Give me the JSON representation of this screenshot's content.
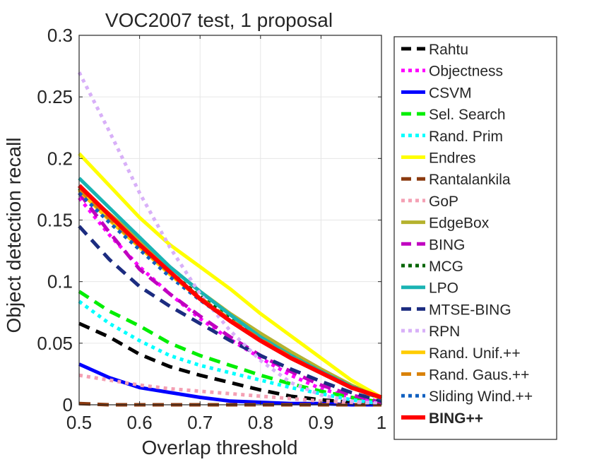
{
  "chart_data": {
    "type": "line",
    "title": "VOC2007 test, 1 proposal",
    "xlabel": "Overlap threshold",
    "ylabel": "Object detection recall",
    "xlim": [
      0.5,
      1
    ],
    "ylim": [
      0,
      0.3
    ],
    "grid": true,
    "legend_position": "right-outside",
    "x": [
      0.5,
      0.55,
      0.6,
      0.65,
      0.7,
      0.75,
      0.8,
      0.85,
      0.9,
      0.95,
      1.0
    ],
    "x_ticks": [
      {
        "value": 0.5,
        "label": "0.5"
      },
      {
        "value": 0.6,
        "label": "0.6"
      },
      {
        "value": 0.7,
        "label": "0.7"
      },
      {
        "value": 0.8,
        "label": "0.8"
      },
      {
        "value": 0.9,
        "label": "0.9"
      },
      {
        "value": 1.0,
        "label": "1"
      }
    ],
    "y_ticks": [
      {
        "value": 0,
        "label": "0"
      },
      {
        "value": 0.05,
        "label": "0.05"
      },
      {
        "value": 0.1,
        "label": "0.1"
      },
      {
        "value": 0.15,
        "label": "0.15"
      },
      {
        "value": 0.2,
        "label": "0.2"
      },
      {
        "value": 0.25,
        "label": "0.25"
      },
      {
        "value": 0.3,
        "label": "0.3"
      }
    ],
    "series": [
      {
        "name": "Rahtu",
        "color": "#000000",
        "style": "dashed",
        "values": [
          0.066,
          0.055,
          0.041,
          0.031,
          0.024,
          0.018,
          0.012,
          0.007,
          0.004,
          0.002,
          0.001
        ]
      },
      {
        "name": "Objectness",
        "color": "#ff00ff",
        "style": "dotted",
        "values": [
          0.168,
          0.138,
          0.112,
          0.09,
          0.07,
          0.053,
          0.038,
          0.024,
          0.013,
          0.006,
          0.002
        ]
      },
      {
        "name": "CSVM",
        "color": "#0000ff",
        "style": "solid",
        "values": [
          0.033,
          0.022,
          0.014,
          0.01,
          0.006,
          0.003,
          0.002,
          0.001,
          0.001,
          0.0,
          0.0
        ]
      },
      {
        "name": "Sel. Search",
        "color": "#00ee00",
        "style": "dashed",
        "values": [
          0.092,
          0.076,
          0.064,
          0.05,
          0.04,
          0.032,
          0.024,
          0.017,
          0.011,
          0.006,
          0.002
        ]
      },
      {
        "name": "Rand. Prim",
        "color": "#00ffff",
        "style": "dotted",
        "values": [
          0.084,
          0.066,
          0.052,
          0.04,
          0.032,
          0.026,
          0.02,
          0.014,
          0.009,
          0.004,
          0.001
        ]
      },
      {
        "name": "Endres",
        "color": "#ffff00",
        "style": "solid",
        "values": [
          0.204,
          0.178,
          0.152,
          0.13,
          0.112,
          0.094,
          0.074,
          0.056,
          0.038,
          0.02,
          0.006
        ]
      },
      {
        "name": "Rantalankila",
        "color": "#8b3a0f",
        "style": "dashed",
        "values": [
          0.001,
          0.0,
          0.0,
          0.0,
          0.0,
          0.0,
          0.0,
          0.0,
          0.0,
          0.0,
          0.0
        ]
      },
      {
        "name": "GoP",
        "color": "#f4a0b4",
        "style": "dotted",
        "values": [
          0.024,
          0.02,
          0.016,
          0.013,
          0.011,
          0.009,
          0.007,
          0.005,
          0.003,
          0.002,
          0.001
        ]
      },
      {
        "name": "EdgeBox",
        "color": "#b5b22e",
        "style": "solid",
        "values": [
          0.176,
          0.155,
          0.134,
          0.112,
          0.092,
          0.074,
          0.058,
          0.043,
          0.029,
          0.016,
          0.005
        ]
      },
      {
        "name": "BING",
        "color": "#c000c0",
        "style": "dashed",
        "values": [
          0.172,
          0.14,
          0.11,
          0.09,
          0.072,
          0.055,
          0.04,
          0.027,
          0.016,
          0.008,
          0.002
        ]
      },
      {
        "name": "MCG",
        "color": "#006400",
        "style": "dotted",
        "values": [
          0.176,
          0.152,
          0.13,
          0.108,
          0.088,
          0.07,
          0.054,
          0.04,
          0.027,
          0.015,
          0.005
        ]
      },
      {
        "name": "LPO",
        "color": "#1ab3b3",
        "style": "solid",
        "values": [
          0.184,
          0.16,
          0.136,
          0.112,
          0.092,
          0.073,
          0.055,
          0.04,
          0.027,
          0.015,
          0.005
        ]
      },
      {
        "name": "MTSE-BING",
        "color": "#1c2c80",
        "style": "dashed",
        "values": [
          0.145,
          0.118,
          0.096,
          0.08,
          0.066,
          0.052,
          0.04,
          0.029,
          0.019,
          0.01,
          0.003
        ]
      },
      {
        "name": "RPN",
        "color": "#d8b0f8",
        "style": "dotted",
        "values": [
          0.27,
          0.222,
          0.172,
          0.128,
          0.09,
          0.06,
          0.036,
          0.018,
          0.008,
          0.003,
          0.001
        ]
      },
      {
        "name": "Rand. Unif.++",
        "color": "#ffcc00",
        "style": "solid",
        "values": [
          0.174,
          0.15,
          0.128,
          0.106,
          0.086,
          0.068,
          0.052,
          0.038,
          0.026,
          0.014,
          0.005
        ]
      },
      {
        "name": "Rand. Gaus.++",
        "color": "#d9820a",
        "style": "dashed",
        "values": [
          0.175,
          0.151,
          0.129,
          0.107,
          0.087,
          0.069,
          0.053,
          0.039,
          0.026,
          0.014,
          0.005
        ]
      },
      {
        "name": "Sliding Wind.++",
        "color": "#1060c0",
        "style": "dotted",
        "values": [
          0.172,
          0.148,
          0.126,
          0.104,
          0.085,
          0.068,
          0.052,
          0.038,
          0.026,
          0.014,
          0.005
        ]
      },
      {
        "name": "BING++",
        "color": "#ff0000",
        "style": "solid",
        "bold": true,
        "values": [
          0.178,
          0.154,
          0.13,
          0.108,
          0.086,
          0.068,
          0.052,
          0.038,
          0.026,
          0.014,
          0.006
        ]
      }
    ]
  }
}
